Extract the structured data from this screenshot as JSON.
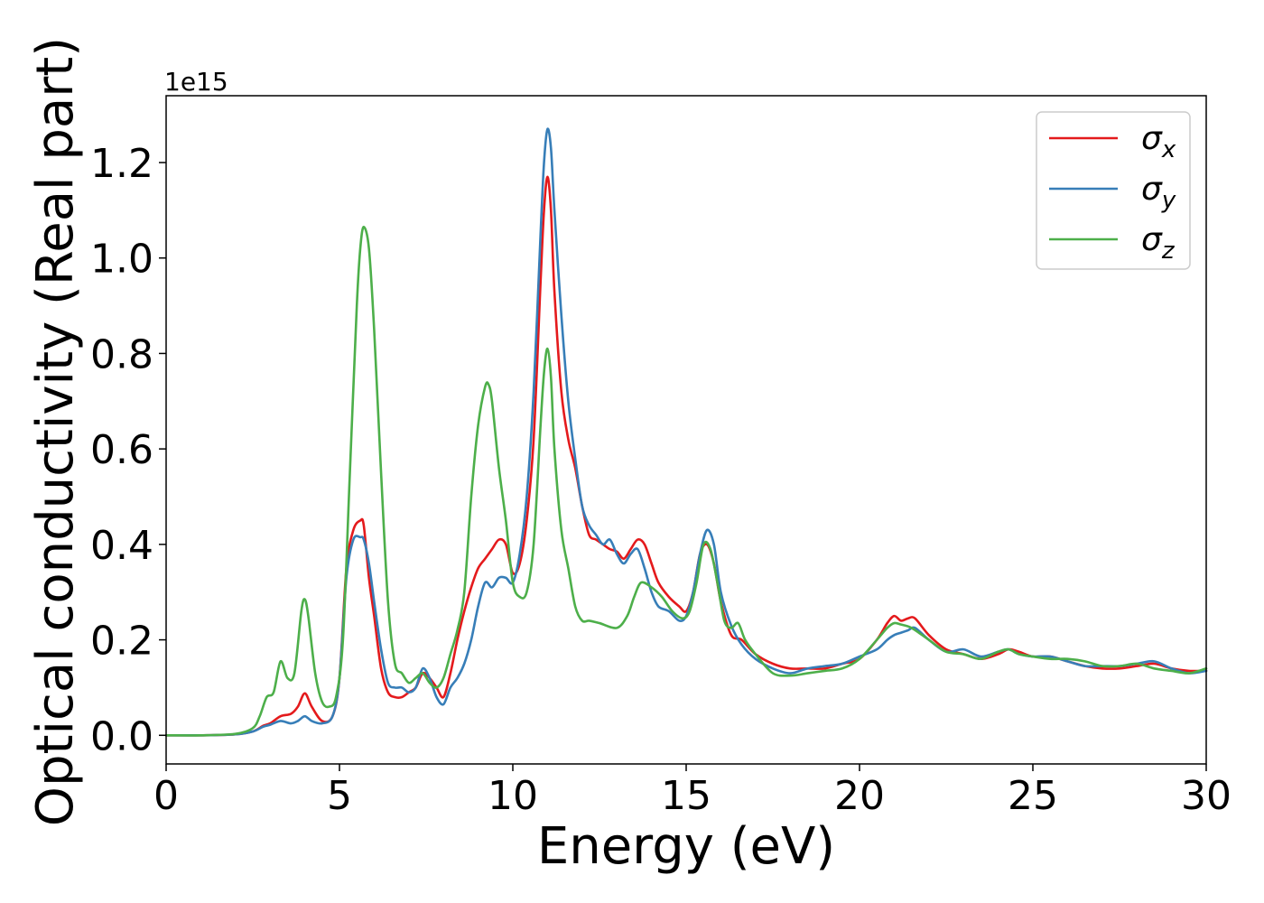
{
  "chart_data": {
    "type": "line",
    "title": "",
    "xlabel": "Energy (eV)",
    "ylabel": "Optical conductivity (Real part)",
    "y_offset_label": "1e15",
    "xlim": [
      0,
      30
    ],
    "ylim": [
      -0.06,
      1.34
    ],
    "x_ticks": [
      0,
      5,
      10,
      15,
      20,
      25,
      30
    ],
    "x_tick_labels": [
      "0",
      "5",
      "10",
      "15",
      "20",
      "25",
      "30"
    ],
    "y_ticks": [
      0.0,
      0.2,
      0.4,
      0.6,
      0.8,
      1.0,
      1.2
    ],
    "y_tick_labels": [
      "0.0",
      "0.2",
      "0.4",
      "0.6",
      "0.8",
      "1.0",
      "1.2"
    ],
    "grid": false,
    "legend_position": "top-right",
    "series": [
      {
        "name": "σx",
        "legend_symbol": "σ",
        "legend_subscript": "x",
        "color": "#e41a1c",
        "x": [
          0,
          1,
          2,
          2.5,
          2.8,
          3.0,
          3.3,
          3.6,
          3.8,
          4.0,
          4.2,
          4.5,
          4.8,
          5.0,
          5.2,
          5.4,
          5.6,
          5.7,
          5.85,
          6.0,
          6.2,
          6.4,
          6.6,
          6.8,
          7.0,
          7.2,
          7.4,
          7.6,
          7.8,
          8.0,
          8.2,
          8.4,
          8.6,
          8.8,
          9.0,
          9.2,
          9.4,
          9.6,
          9.8,
          10.0,
          10.2,
          10.4,
          10.6,
          10.8,
          10.9,
          11.0,
          11.1,
          11.2,
          11.4,
          11.6,
          11.8,
          12.0,
          12.2,
          12.4,
          12.6,
          12.8,
          13.0,
          13.2,
          13.4,
          13.6,
          13.8,
          14.0,
          14.2,
          14.5,
          14.8,
          15.0,
          15.2,
          15.4,
          15.6,
          15.8,
          16.0,
          16.3,
          16.6,
          17.0,
          17.5,
          18.0,
          18.5,
          19.0,
          19.5,
          20.0,
          20.5,
          20.8,
          21.0,
          21.2,
          21.4,
          21.6,
          22.0,
          22.5,
          23.0,
          23.5,
          24.0,
          24.3,
          24.6,
          25.0,
          25.5,
          26.0,
          26.5,
          27.0,
          27.5,
          28.0,
          28.5,
          29.0,
          29.5,
          30.0
        ],
        "values": [
          0.0,
          0.0,
          0.002,
          0.008,
          0.02,
          0.025,
          0.04,
          0.045,
          0.06,
          0.088,
          0.06,
          0.03,
          0.04,
          0.12,
          0.35,
          0.43,
          0.45,
          0.44,
          0.33,
          0.25,
          0.14,
          0.09,
          0.08,
          0.08,
          0.09,
          0.1,
          0.13,
          0.12,
          0.1,
          0.08,
          0.13,
          0.2,
          0.26,
          0.31,
          0.35,
          0.37,
          0.39,
          0.41,
          0.4,
          0.34,
          0.36,
          0.45,
          0.62,
          0.95,
          1.1,
          1.17,
          1.1,
          0.93,
          0.72,
          0.62,
          0.56,
          0.48,
          0.42,
          0.41,
          0.4,
          0.39,
          0.385,
          0.37,
          0.39,
          0.41,
          0.4,
          0.36,
          0.32,
          0.29,
          0.27,
          0.26,
          0.3,
          0.38,
          0.4,
          0.36,
          0.28,
          0.21,
          0.2,
          0.17,
          0.15,
          0.14,
          0.14,
          0.14,
          0.15,
          0.16,
          0.2,
          0.235,
          0.25,
          0.24,
          0.245,
          0.245,
          0.21,
          0.18,
          0.17,
          0.16,
          0.17,
          0.18,
          0.175,
          0.165,
          0.165,
          0.155,
          0.145,
          0.14,
          0.14,
          0.145,
          0.15,
          0.14,
          0.135,
          0.135
        ]
      },
      {
        "name": "σy",
        "legend_symbol": "σ",
        "legend_subscript": "y",
        "color": "#377eb8",
        "x": [
          0,
          1,
          2,
          2.5,
          2.8,
          3.0,
          3.3,
          3.6,
          3.8,
          4.0,
          4.2,
          4.5,
          4.8,
          5.0,
          5.2,
          5.4,
          5.6,
          5.7,
          5.85,
          6.0,
          6.2,
          6.4,
          6.6,
          6.8,
          7.0,
          7.2,
          7.4,
          7.6,
          7.8,
          8.0,
          8.2,
          8.4,
          8.6,
          8.8,
          9.0,
          9.2,
          9.4,
          9.6,
          9.8,
          10.0,
          10.2,
          10.4,
          10.6,
          10.8,
          10.9,
          11.0,
          11.1,
          11.2,
          11.4,
          11.6,
          11.8,
          12.0,
          12.2,
          12.4,
          12.6,
          12.8,
          13.0,
          13.2,
          13.4,
          13.6,
          13.8,
          14.0,
          14.2,
          14.5,
          14.8,
          15.0,
          15.2,
          15.4,
          15.6,
          15.8,
          16.0,
          16.3,
          16.6,
          17.0,
          17.5,
          18.0,
          18.5,
          19.0,
          19.5,
          20.0,
          20.5,
          20.8,
          21.0,
          21.2,
          21.4,
          21.6,
          22.0,
          22.5,
          23.0,
          23.5,
          24.0,
          24.3,
          24.6,
          25.0,
          25.5,
          26.0,
          26.5,
          27.0,
          27.5,
          28.0,
          28.5,
          29.0,
          29.5,
          30.0
        ],
        "values": [
          0.0,
          0.0,
          0.002,
          0.008,
          0.018,
          0.022,
          0.03,
          0.025,
          0.03,
          0.04,
          0.03,
          0.025,
          0.04,
          0.12,
          0.33,
          0.41,
          0.415,
          0.41,
          0.36,
          0.28,
          0.18,
          0.11,
          0.1,
          0.1,
          0.09,
          0.1,
          0.14,
          0.12,
          0.08,
          0.065,
          0.1,
          0.12,
          0.15,
          0.2,
          0.27,
          0.32,
          0.31,
          0.33,
          0.33,
          0.32,
          0.38,
          0.5,
          0.72,
          1.05,
          1.2,
          1.27,
          1.23,
          1.1,
          0.88,
          0.7,
          0.58,
          0.48,
          0.44,
          0.42,
          0.4,
          0.41,
          0.38,
          0.36,
          0.38,
          0.39,
          0.35,
          0.3,
          0.27,
          0.26,
          0.24,
          0.25,
          0.3,
          0.38,
          0.43,
          0.4,
          0.3,
          0.23,
          0.19,
          0.16,
          0.14,
          0.13,
          0.14,
          0.145,
          0.15,
          0.165,
          0.18,
          0.2,
          0.21,
          0.215,
          0.22,
          0.225,
          0.2,
          0.175,
          0.18,
          0.165,
          0.175,
          0.18,
          0.17,
          0.165,
          0.165,
          0.155,
          0.145,
          0.145,
          0.145,
          0.15,
          0.155,
          0.14,
          0.13,
          0.135
        ]
      },
      {
        "name": "σz",
        "legend_symbol": "σ",
        "legend_subscript": "z",
        "color": "#4daf4a",
        "x": [
          0,
          1,
          2,
          2.5,
          2.7,
          2.9,
          3.1,
          3.3,
          3.5,
          3.7,
          3.9,
          4.0,
          4.1,
          4.3,
          4.5,
          4.7,
          4.9,
          5.1,
          5.3,
          5.5,
          5.6,
          5.7,
          5.85,
          6.0,
          6.2,
          6.4,
          6.6,
          6.8,
          7.0,
          7.2,
          7.4,
          7.6,
          7.8,
          8.0,
          8.2,
          8.4,
          8.6,
          8.8,
          9.0,
          9.2,
          9.3,
          9.4,
          9.6,
          9.8,
          10.0,
          10.2,
          10.4,
          10.6,
          10.8,
          10.9,
          11.0,
          11.1,
          11.2,
          11.4,
          11.6,
          11.8,
          12.0,
          12.2,
          12.5,
          13.0,
          13.3,
          13.5,
          13.7,
          14.0,
          14.3,
          14.6,
          14.9,
          15.1,
          15.3,
          15.5,
          15.7,
          15.9,
          16.1,
          16.3,
          16.5,
          16.7,
          17.0,
          17.5,
          18.0,
          18.5,
          19.0,
          19.5,
          20.0,
          20.5,
          20.8,
          21.0,
          21.2,
          21.5,
          22.0,
          22.5,
          23.0,
          23.5,
          24.0,
          24.3,
          24.6,
          25.0,
          25.5,
          26.0,
          26.5,
          27.0,
          27.5,
          28.0,
          28.5,
          29.0,
          29.5,
          30.0
        ],
        "values": [
          0.0,
          0.0,
          0.003,
          0.015,
          0.04,
          0.08,
          0.09,
          0.155,
          0.12,
          0.13,
          0.26,
          0.285,
          0.25,
          0.13,
          0.07,
          0.06,
          0.08,
          0.2,
          0.55,
          0.9,
          1.02,
          1.065,
          1.02,
          0.85,
          0.55,
          0.28,
          0.15,
          0.13,
          0.11,
          0.12,
          0.13,
          0.11,
          0.1,
          0.12,
          0.17,
          0.22,
          0.3,
          0.5,
          0.65,
          0.73,
          0.735,
          0.7,
          0.56,
          0.45,
          0.32,
          0.29,
          0.3,
          0.4,
          0.65,
          0.76,
          0.81,
          0.75,
          0.6,
          0.43,
          0.35,
          0.27,
          0.24,
          0.24,
          0.235,
          0.225,
          0.25,
          0.29,
          0.32,
          0.31,
          0.29,
          0.26,
          0.245,
          0.26,
          0.32,
          0.4,
          0.39,
          0.32,
          0.24,
          0.225,
          0.235,
          0.2,
          0.17,
          0.13,
          0.125,
          0.13,
          0.135,
          0.14,
          0.16,
          0.2,
          0.225,
          0.235,
          0.232,
          0.225,
          0.2,
          0.175,
          0.17,
          0.16,
          0.175,
          0.18,
          0.17,
          0.165,
          0.16,
          0.16,
          0.155,
          0.145,
          0.145,
          0.15,
          0.14,
          0.135,
          0.13,
          0.14
        ]
      }
    ]
  }
}
